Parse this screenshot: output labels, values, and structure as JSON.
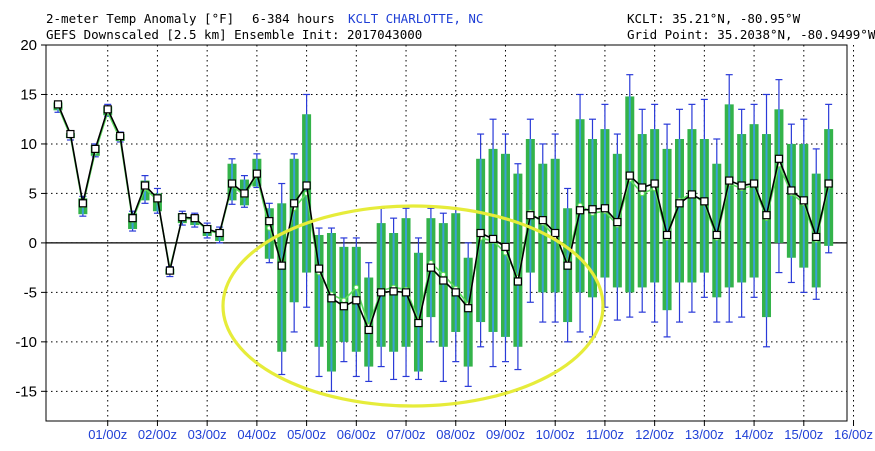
{
  "header": {
    "title": "2-meter Temp Anomaly [°F]",
    "range": "6-384 hours",
    "station": "KCLT CHARLOTTE, NC",
    "subtitle": "GEFS Downscaled [2.5 km] Ensemble Init: 2017043000",
    "station_coords": "KCLT: 35.21°N, -80.95°W",
    "grid_point": "Grid Point: 35.2038°N, -80.9499°W"
  },
  "colors": {
    "box": "#34b34a",
    "box_inner": "#3aa0d6",
    "whisker": "#2a3ad8",
    "mean_line": "#000000",
    "mean_marker": "#ffffff",
    "median": "#5fdc5f",
    "highlight_ellipse": "#e6ec3a",
    "xtick_label": "#1f3fd6"
  },
  "chart_data": {
    "type": "box",
    "title": "2-meter Temp Anomaly [°F]",
    "ylim": [
      -18,
      20
    ],
    "yticks": [
      -15,
      -10,
      -5,
      0,
      5,
      10,
      15,
      20
    ],
    "x_labels": [
      "01/00z",
      "02/00z",
      "03/00z",
      "04/00z",
      "05/00z",
      "06/00z",
      "07/00z",
      "08/00z",
      "09/00z",
      "10/00z",
      "11/00z",
      "12/00z",
      "13/00z",
      "14/00z",
      "15/00z",
      "16/00z"
    ],
    "x_label_start_step": 4,
    "steps_per_label": 4,
    "x_max_step": 64,
    "grid": "dotted",
    "zero_line": true,
    "highlight": "ellipse around forecast days 05-11 (below-normal period)",
    "series": [
      {
        "name": "mean",
        "values": [
          14,
          11,
          4,
          9.5,
          13.5,
          10.8,
          2.5,
          5.8,
          4.5,
          -2.8,
          2.6,
          2.5,
          1.4,
          1,
          6,
          5,
          7,
          2.2,
          -2.3,
          4,
          5.8,
          -2.6,
          -5.6,
          -6.4,
          -5.8,
          -8.8,
          -5,
          -4.9,
          -5,
          -8.1,
          -2.5,
          -3.8,
          -5,
          -6.6,
          1,
          0.4,
          -0.4,
          -3.9,
          2.8,
          2.3,
          1,
          -2.3,
          3.3,
          3.4,
          3.5,
          2.1,
          6.8,
          5.6,
          6,
          0.8,
          4,
          4.9,
          4.2,
          0.8,
          6.3,
          5.8,
          6,
          2.8,
          8.5,
          5.3,
          4.3,
          0.6,
          6
        ]
      },
      {
        "name": "median",
        "values": [
          13.8,
          10.8,
          3.8,
          9.2,
          13.2,
          10.5,
          2.3,
          5.5,
          4.3,
          -2.6,
          2.5,
          2.4,
          1.3,
          0.9,
          5.8,
          4.8,
          6.8,
          1.5,
          -2,
          3.5,
          5,
          -3,
          -5.2,
          -5.8,
          -4.5,
          -8.4,
          -4.8,
          -4.5,
          -4.7,
          -7.8,
          -2,
          -3.2,
          -4.6,
          -6.2,
          0.5,
          0.2,
          -1,
          -3.5,
          3.1,
          2,
          0.6,
          -2,
          3.8,
          3,
          3.2,
          1.8,
          6.4,
          5,
          5.5,
          0.5,
          4.3,
          5,
          4,
          0.5,
          6,
          5.5,
          5.8,
          2.5,
          7.9,
          5,
          4,
          0.3,
          5.7
        ]
      },
      {
        "name": "box_lower",
        "values": [
          13.4,
          10.6,
          2.9,
          8.8,
          12.9,
          10.3,
          1.4,
          4.3,
          3.2,
          -3.2,
          2,
          1.8,
          0.7,
          0.2,
          4.3,
          3.8,
          5.7,
          -1.6,
          -11,
          -6,
          -3,
          -10.5,
          -13,
          -10,
          -11,
          -12.5,
          -10.5,
          -11,
          -10.5,
          -13,
          -7.5,
          -10.5,
          -9,
          -12.5,
          -8,
          -9,
          -9.5,
          -10.5,
          -3,
          -5,
          -5,
          -8,
          -5,
          -5.5,
          -3.5,
          -4.5,
          -5,
          -4.5,
          -4,
          -6.8,
          -4,
          -4,
          -3,
          -5.5,
          -4.5,
          -4,
          -3.5,
          -7.5,
          0,
          -1.5,
          -2.5,
          -4.5,
          -0.3
        ]
      },
      {
        "name": "box_upper",
        "values": [
          14.2,
          11.1,
          4.5,
          9.9,
          13.8,
          11,
          3,
          6.3,
          5,
          -2.6,
          3,
          2.8,
          1.8,
          1.4,
          8,
          6.4,
          8.5,
          3.5,
          4,
          8.5,
          13,
          0.8,
          1,
          -0.4,
          -0.4,
          -3.5,
          2,
          1,
          2.5,
          -1,
          2.5,
          2,
          3,
          -1.5,
          8.5,
          9.5,
          9,
          7,
          10.5,
          8,
          8.5,
          3.5,
          12.5,
          10.5,
          11.5,
          9,
          14.8,
          11,
          11.5,
          9.5,
          10.5,
          11.5,
          10.5,
          8,
          14,
          11,
          12,
          11,
          13.5,
          10,
          10,
          7,
          11.5
        ]
      },
      {
        "name": "whisker_min",
        "values": [
          13.2,
          10.4,
          2.7,
          8.7,
          12.8,
          10.2,
          1.2,
          4,
          3,
          -3.4,
          1.8,
          1.6,
          0.5,
          0,
          3.9,
          3.6,
          5.6,
          -2,
          -13.3,
          -9,
          -6.5,
          -13.5,
          -15,
          -12,
          -13.5,
          -14,
          -12.5,
          -13.8,
          -13.5,
          -13.8,
          -10,
          -14,
          -12,
          -14.5,
          -10.5,
          -12.5,
          -12,
          -12.8,
          -6,
          -8,
          -8,
          -10,
          -9,
          -9.5,
          -6.5,
          -7.8,
          -7.5,
          -7,
          -8,
          -9.5,
          -8,
          -7,
          -5.5,
          -8,
          -8,
          -7.5,
          -5.5,
          -10.5,
          -3,
          -4,
          -5,
          -5.7,
          -1
        ]
      },
      {
        "name": "whisker_max",
        "values": [
          14.3,
          11.2,
          4.7,
          10,
          14,
          11.2,
          3.2,
          6.8,
          5.5,
          -2.4,
          3.2,
          3,
          2,
          1.6,
          8.5,
          6.8,
          9,
          4,
          6,
          9,
          15,
          1.5,
          1.5,
          0.5,
          0.5,
          -2,
          3.5,
          2.5,
          3.5,
          0.5,
          3.5,
          3,
          3.5,
          0,
          11,
          12.5,
          11,
          8,
          12.5,
          10,
          11,
          5.5,
          15,
          12.5,
          14,
          11,
          17,
          13.5,
          14,
          12,
          13.5,
          14,
          14.5,
          10.5,
          17,
          13.5,
          14,
          15,
          16.5,
          12,
          12.5,
          9.5,
          14
        ]
      }
    ]
  }
}
